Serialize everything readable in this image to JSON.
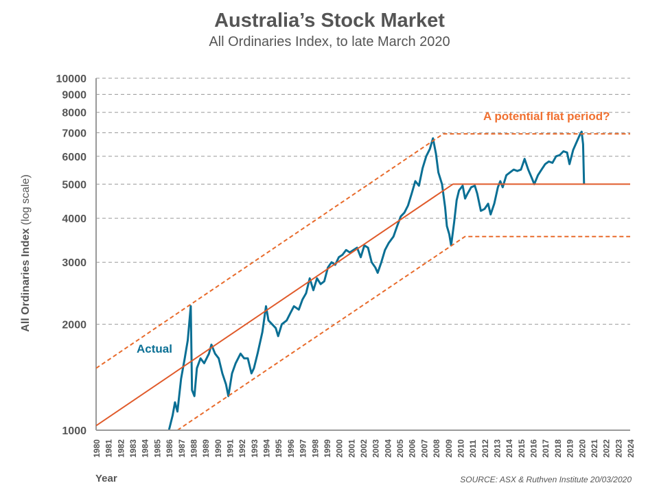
{
  "chart_data": {
    "type": "line",
    "title": "Australia’s Stock Market",
    "subtitle": "All Ordinaries Index, to late March 2020",
    "xlabel": "Year",
    "ylabel_bold": "All Ordinaries Index",
    "ylabel_rest": " (log scale)",
    "source": "SOURCE: ASX & Ruthven Institute 20/03/2020",
    "y_scale": "log",
    "ylim": [
      1000,
      10000
    ],
    "xlim": [
      1980,
      2024
    ],
    "y_ticks": [
      1000,
      2000,
      3000,
      4000,
      5000,
      6000,
      7000,
      8000,
      9000,
      10000
    ],
    "x_ticks": [
      1980,
      1981,
      1982,
      1983,
      1984,
      1985,
      1986,
      1987,
      1988,
      1989,
      1990,
      1991,
      1992,
      1993,
      1994,
      1995,
      1996,
      1997,
      1998,
      1999,
      2000,
      2001,
      2002,
      2003,
      2004,
      2005,
      2006,
      2007,
      2008,
      2009,
      2010,
      2011,
      2012,
      2013,
      2014,
      2015,
      2016,
      2017,
      2018,
      2019,
      2020,
      2021,
      2022,
      2023,
      2024
    ],
    "grid": "horizontal dashed",
    "annotations": {
      "flat": "A potential flat period?",
      "actual": "Actual"
    },
    "colors": {
      "actual": "#0a6f94",
      "trend": "#e05a2a",
      "band": "#e86a2a",
      "grid": "#999999"
    },
    "series": [
      {
        "name": "Actual",
        "style": "solid",
        "points": [
          [
            1986.0,
            1000
          ],
          [
            1986.3,
            1100
          ],
          [
            1986.5,
            1200
          ],
          [
            1986.7,
            1130
          ],
          [
            1987.0,
            1400
          ],
          [
            1987.3,
            1600
          ],
          [
            1987.55,
            1800
          ],
          [
            1987.8,
            2250
          ],
          [
            1987.9,
            1300
          ],
          [
            1988.1,
            1250
          ],
          [
            1988.3,
            1500
          ],
          [
            1988.6,
            1600
          ],
          [
            1988.9,
            1550
          ],
          [
            1989.3,
            1650
          ],
          [
            1989.5,
            1750
          ],
          [
            1989.8,
            1650
          ],
          [
            1990.1,
            1600
          ],
          [
            1990.4,
            1450
          ],
          [
            1990.7,
            1350
          ],
          [
            1990.9,
            1250
          ],
          [
            1991.2,
            1450
          ],
          [
            1991.5,
            1550
          ],
          [
            1991.9,
            1650
          ],
          [
            1992.2,
            1600
          ],
          [
            1992.5,
            1600
          ],
          [
            1992.8,
            1450
          ],
          [
            1993.0,
            1500
          ],
          [
            1993.3,
            1650
          ],
          [
            1993.7,
            1900
          ],
          [
            1994.0,
            2250
          ],
          [
            1994.2,
            2050
          ],
          [
            1994.5,
            2000
          ],
          [
            1994.8,
            1950
          ],
          [
            1995.0,
            1850
          ],
          [
            1995.3,
            2000
          ],
          [
            1995.7,
            2050
          ],
          [
            1996.0,
            2150
          ],
          [
            1996.3,
            2250
          ],
          [
            1996.7,
            2200
          ],
          [
            1997.0,
            2350
          ],
          [
            1997.3,
            2450
          ],
          [
            1997.6,
            2700
          ],
          [
            1997.9,
            2500
          ],
          [
            1998.2,
            2700
          ],
          [
            1998.5,
            2600
          ],
          [
            1998.8,
            2650
          ],
          [
            1999.1,
            2900
          ],
          [
            1999.4,
            3000
          ],
          [
            1999.7,
            2950
          ],
          [
            2000.0,
            3100
          ],
          [
            2000.3,
            3150
          ],
          [
            2000.6,
            3250
          ],
          [
            2000.9,
            3200
          ],
          [
            2001.2,
            3250
          ],
          [
            2001.5,
            3300
          ],
          [
            2001.8,
            3100
          ],
          [
            2002.1,
            3350
          ],
          [
            2002.4,
            3300
          ],
          [
            2002.7,
            3000
          ],
          [
            2003.0,
            2900
          ],
          [
            2003.2,
            2800
          ],
          [
            2003.5,
            3000
          ],
          [
            2003.8,
            3250
          ],
          [
            2004.1,
            3400
          ],
          [
            2004.5,
            3550
          ],
          [
            2004.8,
            3800
          ],
          [
            2005.1,
            4050
          ],
          [
            2005.4,
            4150
          ],
          [
            2005.7,
            4350
          ],
          [
            2006.0,
            4700
          ],
          [
            2006.3,
            5100
          ],
          [
            2006.6,
            4950
          ],
          [
            2006.9,
            5550
          ],
          [
            2007.2,
            6000
          ],
          [
            2007.5,
            6300
          ],
          [
            2007.75,
            6750
          ],
          [
            2008.0,
            6100
          ],
          [
            2008.2,
            5400
          ],
          [
            2008.5,
            5000
          ],
          [
            2008.75,
            4300
          ],
          [
            2008.9,
            3800
          ],
          [
            2009.1,
            3600
          ],
          [
            2009.25,
            3350
          ],
          [
            2009.5,
            3900
          ],
          [
            2009.7,
            4500
          ],
          [
            2009.9,
            4800
          ],
          [
            2010.2,
            4950
          ],
          [
            2010.4,
            4550
          ],
          [
            2010.6,
            4700
          ],
          [
            2010.9,
            4900
          ],
          [
            2011.2,
            4950
          ],
          [
            2011.4,
            4700
          ],
          [
            2011.7,
            4200
          ],
          [
            2012.0,
            4250
          ],
          [
            2012.3,
            4400
          ],
          [
            2012.5,
            4100
          ],
          [
            2012.8,
            4400
          ],
          [
            2013.1,
            4900
          ],
          [
            2013.3,
            5100
          ],
          [
            2013.5,
            4900
          ],
          [
            2013.8,
            5300
          ],
          [
            2014.1,
            5400
          ],
          [
            2014.4,
            5500
          ],
          [
            2014.7,
            5450
          ],
          [
            2015.0,
            5500
          ],
          [
            2015.3,
            5900
          ],
          [
            2015.6,
            5500
          ],
          [
            2015.9,
            5200
          ],
          [
            2016.1,
            5000
          ],
          [
            2016.4,
            5300
          ],
          [
            2016.7,
            5500
          ],
          [
            2017.0,
            5700
          ],
          [
            2017.3,
            5800
          ],
          [
            2017.6,
            5750
          ],
          [
            2017.9,
            6000
          ],
          [
            2018.2,
            6050
          ],
          [
            2018.5,
            6200
          ],
          [
            2018.8,
            6150
          ],
          [
            2019.0,
            5700
          ],
          [
            2019.3,
            6250
          ],
          [
            2019.6,
            6600
          ],
          [
            2019.85,
            6900
          ],
          [
            2020.0,
            7050
          ],
          [
            2020.12,
            6500
          ],
          [
            2020.2,
            5000
          ]
        ]
      },
      {
        "name": "Trend",
        "style": "solid",
        "points": [
          [
            1980,
            1030
          ],
          [
            2009.4,
            5000
          ],
          [
            2024,
            5000
          ]
        ]
      },
      {
        "name": "Upper band",
        "style": "dashed",
        "points": [
          [
            1980,
            1500
          ],
          [
            2008.6,
            6950
          ],
          [
            2024,
            6950
          ]
        ]
      },
      {
        "name": "Lower band",
        "style": "dashed",
        "points": [
          [
            1986.7,
            1000
          ],
          [
            2010.4,
            3550
          ],
          [
            2024,
            3550
          ]
        ]
      }
    ]
  }
}
